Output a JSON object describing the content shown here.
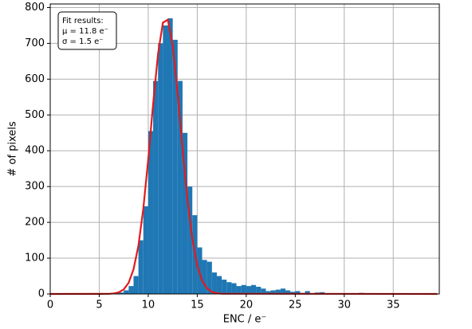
{
  "chart_data": {
    "type": "histogram",
    "xlabel": "ENC / e⁻",
    "ylabel": "# of pixels",
    "bins": [
      6,
      6.5,
      7,
      7.5,
      8,
      8.5,
      9,
      9.5,
      10,
      10.5,
      11,
      11.5,
      12,
      12.5,
      13,
      13.5,
      14,
      14.5,
      15,
      15.5,
      16,
      16.5,
      17,
      17.5,
      18,
      18.5,
      19,
      19.5,
      20,
      20.5,
      21,
      21.5,
      22,
      22.5,
      23,
      23.5,
      24,
      24.5,
      25,
      25.5,
      26,
      26.5,
      27,
      27.5,
      28,
      28.5,
      29,
      29.5,
      30,
      30.5,
      31,
      31.5,
      32
    ],
    "values": [
      1,
      2,
      4,
      10,
      22,
      50,
      150,
      245,
      455,
      595,
      700,
      750,
      770,
      710,
      595,
      450,
      300,
      220,
      130,
      95,
      90,
      60,
      50,
      40,
      33,
      30,
      22,
      25,
      22,
      25,
      20,
      15,
      8,
      10,
      12,
      15,
      10,
      6,
      8,
      3,
      8,
      2,
      4,
      5,
      1,
      2,
      1,
      1,
      2,
      1,
      1,
      3
    ],
    "color": "#1f77b4",
    "fit": {
      "x": [
        0,
        6,
        6.5,
        7,
        7.5,
        8,
        8.5,
        9,
        9.5,
        10,
        10.5,
        11,
        11.5,
        12,
        12.5,
        13,
        13.5,
        14,
        14.5,
        15,
        15.5,
        16,
        16.5,
        17,
        17.5,
        39.5
      ],
      "values": [
        0,
        0.4,
        1.5,
        4.6,
        12.7,
        31.2,
        68.7,
        135,
        239,
        376,
        531,
        671,
        758,
        766,
        693,
        561,
        407,
        264,
        153,
        79,
        37,
        15.3,
        5.7,
        1.9,
        0.7,
        0
      ],
      "color": "#e41a1c"
    },
    "annotation": [
      "Fit results:",
      "μ = 11.8 e⁻",
      "σ = 1.5 e⁻"
    ],
    "xlim": [
      0,
      39.7
    ],
    "ylim": [
      0,
      810
    ],
    "xticks": [
      0,
      5,
      10,
      15,
      20,
      25,
      30,
      35
    ],
    "yticks": [
      0,
      100,
      200,
      300,
      400,
      500,
      600,
      700,
      800
    ],
    "grid": true
  }
}
